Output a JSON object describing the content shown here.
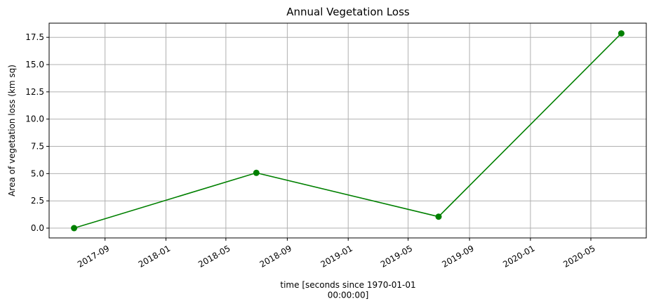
{
  "chart_data": {
    "type": "line",
    "title": "Annual Vegetation Loss",
    "xlabel": "time [seconds since 1970-01-01\n00:00:00]",
    "ylabel": "Area of vegetation loss (km sq)",
    "x": [
      "2017-07-01",
      "2018-07-01",
      "2019-07-01",
      "2020-07-01"
    ],
    "series": [
      {
        "values": [
          0.0,
          5.07,
          1.05,
          17.86
        ]
      }
    ],
    "x_ticks": [
      "2017-09",
      "2018-01",
      "2018-05",
      "2018-09",
      "2019-01",
      "2019-05",
      "2019-09",
      "2020-01",
      "2020-05"
    ],
    "y_ticks": [
      "0.0",
      "2.5",
      "5.0",
      "7.5",
      "10.0",
      "12.5",
      "15.0",
      "17.5"
    ],
    "xlim": [
      "2017-05-12",
      "2020-08-20"
    ],
    "ylim": [
      -0.9,
      18.8
    ],
    "grid": true,
    "legend": "none",
    "line_color": "#008000",
    "marker": "circle"
  }
}
